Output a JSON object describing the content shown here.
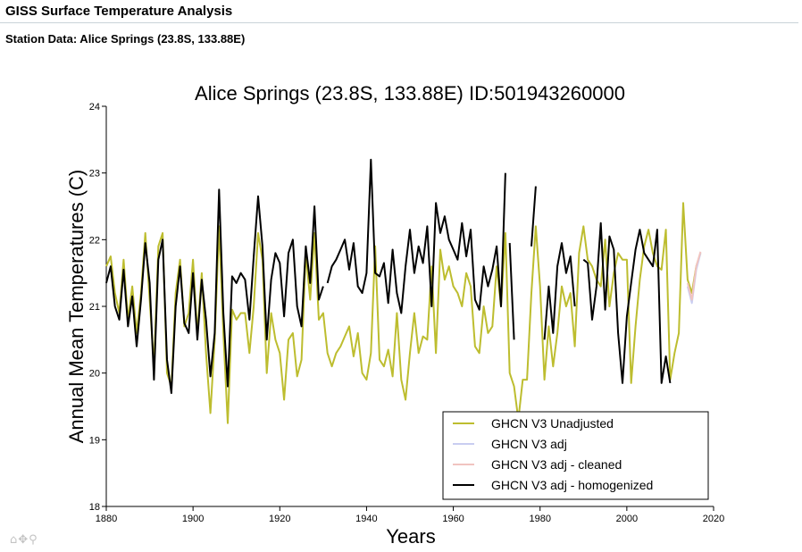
{
  "header": {
    "app_title": "GISS Surface Temperature Analysis",
    "station_title": "Station Data: Alice Springs (23.8S, 133.88E)"
  },
  "toolbar": {
    "icons": [
      "home-icon",
      "pan-icon",
      "zoom-icon"
    ],
    "home_glyph": "⌂",
    "pan_glyph": "✥",
    "zoom_glyph": "⚲"
  },
  "chart_data": {
    "type": "line",
    "title": "Alice Springs (23.8S, 133.88E) ID:501943260000",
    "xlabel": "Years",
    "ylabel": "Annual Mean Temperatures (C)",
    "xlim": [
      1880,
      2020
    ],
    "ylim": [
      18,
      24
    ],
    "xticks": [
      1880,
      1900,
      1920,
      1940,
      1960,
      1980,
      2000,
      2020
    ],
    "yticks": [
      18,
      19,
      20,
      21,
      22,
      23,
      24
    ],
    "grid": false,
    "legend_position": "bottom-right",
    "series": [
      {
        "name": "GHCN V3 Unadjusted",
        "color": "#bdbd2f",
        "points": [
          [
            1880,
            21.6
          ],
          [
            1881,
            21.75
          ],
          [
            1882,
            21.2
          ],
          [
            1883,
            20.9
          ],
          [
            1884,
            21.7
          ],
          [
            1885,
            20.8
          ],
          [
            1886,
            21.3
          ],
          [
            1887,
            20.6
          ],
          [
            1888,
            21.2
          ],
          [
            1889,
            22.1
          ],
          [
            1890,
            21.1
          ],
          [
            1891,
            20.1
          ],
          [
            1892,
            21.9
          ],
          [
            1893,
            22.1
          ],
          [
            1894,
            20.0
          ],
          [
            1895,
            19.8
          ],
          [
            1896,
            21.2
          ],
          [
            1897,
            21.7
          ],
          [
            1898,
            20.7
          ],
          [
            1899,
            20.9
          ],
          [
            1900,
            21.7
          ],
          [
            1901,
            20.6
          ],
          [
            1902,
            21.5
          ],
          [
            1903,
            20.3
          ],
          [
            1904,
            19.4
          ],
          [
            1905,
            20.5
          ],
          [
            1906,
            22.2
          ],
          [
            1907,
            20.6
          ],
          [
            1908,
            19.25
          ],
          [
            1909,
            20.95
          ],
          [
            1910,
            20.8
          ],
          [
            1911,
            20.9
          ],
          [
            1912,
            20.9
          ],
          [
            1913,
            20.3
          ],
          [
            1914,
            21.0
          ],
          [
            1915,
            22.1
          ],
          [
            1916,
            21.7
          ],
          [
            1917,
            20.0
          ],
          [
            1918,
            20.9
          ],
          [
            1919,
            20.5
          ],
          [
            1920,
            20.3
          ],
          [
            1921,
            19.6
          ],
          [
            1922,
            20.5
          ],
          [
            1923,
            20.6
          ],
          [
            1924,
            19.95
          ],
          [
            1925,
            20.2
          ],
          [
            1926,
            21.8
          ],
          [
            1927,
            21.1
          ],
          [
            1928,
            22.1
          ],
          [
            1929,
            20.8
          ],
          [
            1930,
            20.9
          ],
          [
            1931,
            20.3
          ],
          [
            1932,
            20.1
          ],
          [
            1933,
            20.3
          ],
          [
            1934,
            20.4
          ],
          [
            1935,
            20.55
          ],
          [
            1936,
            20.7
          ],
          [
            1937,
            20.25
          ],
          [
            1938,
            20.6
          ],
          [
            1939,
            20.0
          ],
          [
            1940,
            19.9
          ],
          [
            1941,
            20.3
          ],
          [
            1942,
            21.9
          ],
          [
            1943,
            20.2
          ],
          [
            1944,
            20.1
          ],
          [
            1945,
            20.35
          ],
          [
            1946,
            19.95
          ],
          [
            1947,
            20.9
          ],
          [
            1948,
            19.9
          ],
          [
            1949,
            19.6
          ],
          [
            1950,
            20.3
          ],
          [
            1951,
            20.9
          ],
          [
            1952,
            20.3
          ],
          [
            1953,
            20.55
          ],
          [
            1954,
            20.5
          ],
          [
            1955,
            21.6
          ],
          [
            1956,
            20.3
          ],
          [
            1957,
            21.85
          ],
          [
            1958,
            21.4
          ],
          [
            1959,
            21.6
          ],
          [
            1960,
            21.3
          ],
          [
            1961,
            21.2
          ],
          [
            1962,
            21.0
          ],
          [
            1963,
            21.5
          ],
          [
            1964,
            21.3
          ],
          [
            1965,
            20.4
          ],
          [
            1966,
            20.3
          ],
          [
            1967,
            21.0
          ],
          [
            1968,
            20.6
          ],
          [
            1969,
            20.7
          ],
          [
            1970,
            21.6
          ],
          [
            1971,
            21.0
          ],
          [
            1972,
            22.1
          ],
          [
            1973,
            20.0
          ],
          [
            1974,
            19.8
          ],
          [
            1975,
            19.3
          ],
          [
            1976,
            19.9
          ],
          [
            1977,
            19.9
          ],
          [
            1978,
            21.2
          ],
          [
            1979,
            22.2
          ],
          [
            1980,
            21.3
          ],
          [
            1981,
            19.9
          ],
          [
            1982,
            20.7
          ],
          [
            1983,
            20.1
          ],
          [
            1984,
            20.6
          ],
          [
            1985,
            21.3
          ],
          [
            1986,
            21.0
          ],
          [
            1987,
            21.2
          ],
          [
            1988,
            20.4
          ],
          [
            1989,
            21.8
          ],
          [
            1990,
            22.2
          ],
          [
            1991,
            21.7
          ],
          [
            1992,
            21.6
          ],
          [
            1993,
            21.4
          ],
          [
            1994,
            21.3
          ],
          [
            1995,
            22.0
          ],
          [
            1996,
            21.0
          ],
          [
            1997,
            21.5
          ],
          [
            1998,
            21.8
          ],
          [
            1999,
            21.7
          ],
          [
            2000,
            21.7
          ],
          [
            2001,
            19.85
          ],
          [
            2002,
            20.7
          ],
          [
            2003,
            21.4
          ],
          [
            2004,
            21.9
          ],
          [
            2005,
            22.15
          ],
          [
            2006,
            21.8
          ],
          [
            2007,
            21.6
          ],
          [
            2008,
            21.55
          ],
          [
            2009,
            22.15
          ],
          [
            2010,
            19.9
          ],
          [
            2011,
            20.3
          ],
          [
            2012,
            20.6
          ],
          [
            2013,
            22.55
          ],
          [
            2014,
            21.4
          ],
          [
            2015,
            21.2
          ],
          [
            2016,
            21.6
          ],
          [
            2017,
            21.8
          ]
        ]
      },
      {
        "name": "GHCN V3 adj",
        "color": "#c9cdf1",
        "points": [
          [
            2014,
            21.3
          ],
          [
            2015,
            21.05
          ],
          [
            2016,
            21.55
          ],
          [
            2017,
            21.8
          ]
        ]
      },
      {
        "name": "GHCN V3 adj - cleaned",
        "color": "#f1c4c0",
        "points": [
          [
            2014,
            21.35
          ],
          [
            2015,
            21.1
          ],
          [
            2016,
            21.6
          ],
          [
            2017,
            21.82
          ]
        ]
      },
      {
        "name": "GHCN V3 adj - homogenized",
        "color": "#000000",
        "segments": [
          [
            [
              1880,
              21.35
            ],
            [
              1881,
              21.6
            ],
            [
              1882,
              21.0
            ],
            [
              1883,
              20.8
            ],
            [
              1884,
              21.55
            ],
            [
              1885,
              20.7
            ],
            [
              1886,
              21.15
            ],
            [
              1887,
              20.4
            ],
            [
              1888,
              21.1
            ],
            [
              1889,
              21.95
            ],
            [
              1890,
              21.35
            ],
            [
              1891,
              19.9
            ],
            [
              1892,
              21.7
            ],
            [
              1893,
              22.0
            ],
            [
              1894,
              20.2
            ],
            [
              1895,
              19.7
            ],
            [
              1896,
              21.0
            ],
            [
              1897,
              21.6
            ],
            [
              1898,
              20.75
            ],
            [
              1899,
              20.6
            ],
            [
              1900,
              21.5
            ],
            [
              1901,
              20.5
            ],
            [
              1902,
              21.4
            ],
            [
              1903,
              20.8
            ],
            [
              1904,
              19.95
            ],
            [
              1905,
              20.6
            ],
            [
              1906,
              22.75
            ],
            [
              1907,
              20.9
            ],
            [
              1908,
              19.8
            ],
            [
              1909,
              21.45
            ],
            [
              1910,
              21.35
            ],
            [
              1911,
              21.5
            ],
            [
              1912,
              21.4
            ],
            [
              1913,
              20.8
            ],
            [
              1914,
              21.75
            ],
            [
              1915,
              22.65
            ],
            [
              1916,
              21.9
            ],
            [
              1917,
              20.5
            ],
            [
              1918,
              21.4
            ],
            [
              1919,
              21.8
            ],
            [
              1920,
              21.65
            ],
            [
              1921,
              20.85
            ],
            [
              1922,
              21.8
            ],
            [
              1923,
              22.0
            ],
            [
              1924,
              21.0
            ],
            [
              1925,
              20.7
            ],
            [
              1926,
              21.9
            ],
            [
              1927,
              21.35
            ],
            [
              1928,
              22.5
            ],
            [
              1929,
              21.1
            ],
            [
              1930,
              21.3
            ]
          ],
          [
            [
              1931,
              21.35
            ],
            [
              1932,
              21.6
            ],
            [
              1933,
              21.7
            ],
            [
              1934,
              21.85
            ],
            [
              1935,
              22.0
            ],
            [
              1936,
              21.55
            ],
            [
              1937,
              21.95
            ],
            [
              1938,
              21.3
            ],
            [
              1939,
              21.2
            ],
            [
              1940,
              21.5
            ],
            [
              1941,
              23.2
            ],
            [
              1942,
              21.5
            ],
            [
              1943,
              21.45
            ],
            [
              1944,
              21.65
            ],
            [
              1945,
              21.05
            ],
            [
              1946,
              21.85
            ],
            [
              1947,
              21.2
            ],
            [
              1948,
              20.9
            ],
            [
              1949,
              21.6
            ],
            [
              1950,
              22.15
            ],
            [
              1951,
              21.5
            ],
            [
              1952,
              21.9
            ],
            [
              1953,
              21.65
            ],
            [
              1954,
              22.2
            ],
            [
              1955,
              21.0
            ],
            [
              1956,
              22.55
            ],
            [
              1957,
              22.1
            ],
            [
              1958,
              22.35
            ],
            [
              1959,
              22.0
            ],
            [
              1960,
              21.85
            ],
            [
              1961,
              21.7
            ],
            [
              1962,
              22.25
            ],
            [
              1963,
              21.75
            ],
            [
              1964,
              22.15
            ],
            [
              1965,
              21.1
            ],
            [
              1966,
              20.95
            ],
            [
              1967,
              21.6
            ],
            [
              1968,
              21.3
            ],
            [
              1969,
              21.55
            ],
            [
              1970,
              21.9
            ],
            [
              1971,
              21.0
            ],
            [
              1972,
              23.0
            ]
          ],
          [
            [
              1973,
              21.95
            ],
            [
              1974,
              20.5
            ]
          ],
          [
            [
              1978,
              21.9
            ],
            [
              1979,
              22.8
            ]
          ],
          [
            [
              1981,
              20.5
            ],
            [
              1982,
              21.3
            ],
            [
              1983,
              20.6
            ],
            [
              1984,
              21.6
            ],
            [
              1985,
              21.95
            ],
            [
              1986,
              21.5
            ],
            [
              1987,
              21.75
            ],
            [
              1988,
              21.0
            ]
          ],
          [
            [
              1990,
              21.7
            ],
            [
              1991,
              21.65
            ],
            [
              1992,
              20.8
            ],
            [
              1993,
              21.3
            ],
            [
              1994,
              22.25
            ],
            [
              1995,
              20.95
            ],
            [
              1996,
              22.05
            ],
            [
              1997,
              21.85
            ],
            [
              1998,
              20.6
            ],
            [
              1999,
              19.85
            ],
            [
              2000,
              20.85
            ],
            [
              2001,
              21.35
            ],
            [
              2002,
              21.85
            ],
            [
              2003,
              22.15
            ],
            [
              2004,
              21.8
            ],
            [
              2005,
              21.7
            ],
            [
              2006,
              21.6
            ],
            [
              2007,
              22.15
            ],
            [
              2008,
              19.85
            ],
            [
              2009,
              20.25
            ],
            [
              2010,
              19.85
            ]
          ]
        ]
      }
    ]
  }
}
